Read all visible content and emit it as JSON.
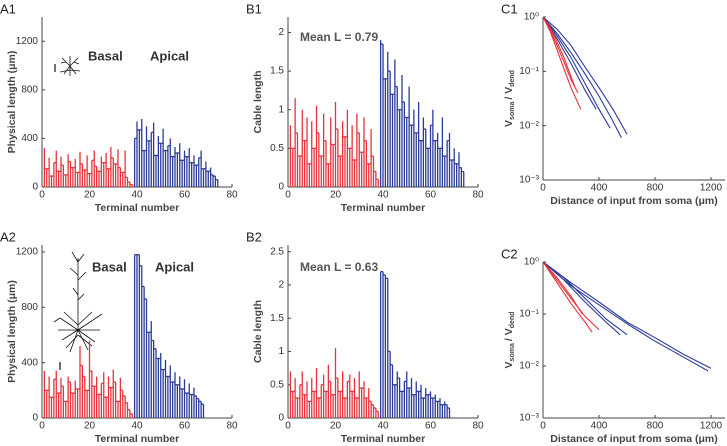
{
  "chart_data": [
    {
      "type": "dendrogram",
      "label": "A1",
      "xlabel": "Terminal number",
      "ylabel": "Physical length (μm)",
      "xlim": [
        0,
        80
      ],
      "xticks": [
        0,
        20,
        40,
        60,
        80
      ],
      "ylim": [
        0,
        1400
      ],
      "yticks": [
        0,
        400,
        800,
        1200
      ],
      "series": [
        {
          "name": "Basal",
          "color": "#e8323c",
          "x": [
            1,
            2,
            3,
            4,
            5,
            6,
            7,
            8,
            9,
            10,
            11,
            12,
            13,
            14,
            15,
            16,
            17,
            18,
            19,
            20,
            21,
            22,
            23,
            24,
            25,
            26,
            27,
            28,
            29,
            30,
            31,
            32,
            33,
            34,
            35,
            36,
            37,
            38
          ],
          "values": [
            320,
            150,
            240,
            90,
            200,
            300,
            130,
            250,
            180,
            100,
            270,
            210,
            160,
            230,
            120,
            290,
            190,
            140,
            260,
            110,
            220,
            300,
            170,
            130,
            250,
            200,
            280,
            150,
            330,
            240,
            190,
            310,
            160,
            120,
            300,
            80,
            40,
            20
          ]
        },
        {
          "name": "Apical",
          "color": "#2b3a98",
          "x": [
            39,
            40,
            41,
            42,
            43,
            44,
            45,
            46,
            47,
            48,
            49,
            50,
            51,
            52,
            53,
            54,
            55,
            56,
            57,
            58,
            59,
            60,
            61,
            62,
            63,
            64,
            65,
            66,
            67,
            68,
            69,
            70,
            71,
            72,
            73,
            74
          ],
          "values": [
            400,
            540,
            470,
            560,
            300,
            500,
            380,
            450,
            530,
            260,
            420,
            360,
            480,
            300,
            340,
            400,
            250,
            330,
            280,
            360,
            220,
            300,
            250,
            320,
            200,
            260,
            180,
            240,
            300,
            150,
            210,
            130,
            160,
            100,
            90,
            60
          ]
        }
      ]
    },
    {
      "type": "dendrogram",
      "label": "B1",
      "xlabel": "Terminal number",
      "ylabel": "Cable length",
      "annotation": "Mean L = 0.79",
      "xlim": [
        0,
        80
      ],
      "xticks": [
        0,
        20,
        40,
        60,
        80
      ],
      "ylim": [
        0,
        2.2
      ],
      "yticks": [
        0,
        0.5,
        1,
        1.5,
        2
      ],
      "series": [
        {
          "color": "#e8323c",
          "x": [
            1,
            2,
            3,
            4,
            5,
            6,
            7,
            8,
            9,
            10,
            11,
            12,
            13,
            14,
            15,
            16,
            17,
            18,
            19,
            20,
            21,
            22,
            23,
            24,
            25,
            26,
            27,
            28,
            29,
            30,
            31,
            32,
            33,
            34,
            35,
            36,
            37,
            38
          ],
          "values": [
            0.8,
            0.5,
            1.15,
            0.7,
            0.4,
            1.0,
            0.6,
            0.9,
            0.3,
            0.85,
            0.5,
            1.05,
            0.7,
            0.4,
            0.95,
            0.6,
            0.3,
            0.9,
            0.55,
            1.1,
            0.75,
            0.4,
            0.85,
            0.65,
            1.0,
            0.5,
            0.8,
            0.35,
            0.95,
            0.7,
            0.45,
            0.9,
            0.6,
            0.3,
            0.75,
            0.4,
            0.2,
            0.1
          ]
        },
        {
          "color": "#2b3a98",
          "x": [
            39,
            40,
            41,
            42,
            43,
            44,
            45,
            46,
            47,
            48,
            49,
            50,
            51,
            52,
            53,
            54,
            55,
            56,
            57,
            58,
            59,
            60,
            61,
            62,
            63,
            64,
            65,
            66,
            67,
            68,
            69,
            70,
            71,
            72,
            73,
            74
          ],
          "values": [
            1.9,
            1.85,
            1.4,
            1.75,
            1.5,
            1.2,
            1.65,
            1.3,
            1.0,
            1.45,
            1.1,
            0.9,
            1.3,
            0.8,
            1.0,
            0.7,
            1.1,
            0.6,
            0.9,
            0.75,
            0.5,
            0.8,
            1.0,
            0.6,
            0.7,
            0.5,
            0.9,
            0.4,
            0.6,
            0.7,
            0.35,
            0.5,
            0.3,
            0.45,
            0.25,
            0.2
          ]
        }
      ]
    },
    {
      "type": "line",
      "label": "C1",
      "xlabel": "Distance of input from soma (μm)",
      "ylabel": [
        "V",
        "soma",
        "/ V",
        "dend"
      ],
      "ylog": true,
      "xlim": [
        0,
        1300
      ],
      "xticks": [
        0,
        400,
        800,
        1200
      ],
      "ylim": [
        0.001,
        1
      ],
      "yticks": [
        {
          "value": 1,
          "label": "10⁰"
        },
        {
          "value": 0.1,
          "label": "10⁻¹"
        },
        {
          "value": 0.01,
          "label": "10⁻²"
        },
        {
          "value": 0.001,
          "label": "10⁻³"
        }
      ],
      "series": [
        {
          "color": "#2b3a98",
          "x": [
            0,
            100,
            200,
            300,
            400,
            500,
            600
          ],
          "values": [
            1,
            0.6,
            0.3,
            0.12,
            0.05,
            0.02,
            0.007
          ]
        },
        {
          "color": "#2b3a98",
          "x": [
            0,
            100,
            200,
            300,
            400,
            500,
            560
          ],
          "values": [
            1,
            0.5,
            0.22,
            0.09,
            0.035,
            0.012,
            0.006
          ]
        },
        {
          "color": "#2b3a98",
          "x": [
            0,
            100,
            200,
            300,
            400,
            480
          ],
          "values": [
            1,
            0.45,
            0.18,
            0.06,
            0.02,
            0.009
          ]
        },
        {
          "color": "#2b3a98",
          "x": [
            0,
            100,
            200,
            300,
            380
          ],
          "values": [
            1,
            0.4,
            0.14,
            0.045,
            0.02
          ]
        },
        {
          "color": "#e8323c",
          "x": [
            0,
            50,
            100,
            150,
            200,
            250
          ],
          "values": [
            1,
            0.6,
            0.3,
            0.15,
            0.07,
            0.04
          ]
        },
        {
          "color": "#e8323c",
          "x": [
            0,
            50,
            100,
            150,
            200,
            270
          ],
          "values": [
            1,
            0.55,
            0.25,
            0.11,
            0.05,
            0.02
          ]
        },
        {
          "color": "#e8323c",
          "x": [
            0,
            50,
            100,
            150,
            200,
            230
          ],
          "values": [
            1,
            0.65,
            0.35,
            0.18,
            0.08,
            0.05
          ]
        }
      ]
    },
    {
      "type": "dendrogram",
      "label": "A2",
      "xlabel": "Terminal number",
      "ylabel": "Physical length (μm)",
      "xlim": [
        0,
        80
      ],
      "xticks": [
        0,
        20,
        40,
        60,
        80
      ],
      "ylim": [
        0,
        1250
      ],
      "yticks": [
        0,
        400,
        800,
        1200
      ],
      "series": [
        {
          "name": "Basal",
          "color": "#e8323c",
          "x": [
            1,
            2,
            3,
            4,
            5,
            6,
            7,
            8,
            9,
            10,
            11,
            12,
            13,
            14,
            15,
            16,
            17,
            18,
            19,
            20,
            21,
            22,
            23,
            24,
            25,
            26,
            27,
            28,
            29,
            30,
            31,
            32,
            33,
            34,
            35,
            36,
            37,
            38
          ],
          "values": [
            340,
            200,
            300,
            150,
            280,
            340,
            180,
            290,
            230,
            120,
            300,
            260,
            180,
            270,
            210,
            520,
            380,
            300,
            200,
            560,
            340,
            230,
            300,
            170,
            250,
            330,
            150,
            300,
            220,
            350,
            260,
            120,
            290,
            200,
            160,
            110,
            60,
            30
          ]
        },
        {
          "name": "Apical",
          "color": "#2b3a98",
          "x": [
            39,
            40,
            41,
            42,
            43,
            44,
            45,
            46,
            47,
            48,
            49,
            50,
            51,
            52,
            53,
            54,
            55,
            56,
            57,
            58,
            59,
            60,
            61,
            62,
            63,
            64,
            65,
            66,
            67,
            68
          ],
          "values": [
            1180,
            1180,
            1180,
            1100,
            950,
            860,
            620,
            700,
            560,
            500,
            430,
            470,
            350,
            420,
            300,
            380,
            260,
            330,
            240,
            300,
            210,
            280,
            180,
            250,
            170,
            220,
            160,
            140,
            120,
            100
          ]
        }
      ]
    },
    {
      "type": "dendrogram",
      "label": "B2",
      "xlabel": "Terminal number",
      "ylabel": "Cable length",
      "annotation": "Mean L = 0.63",
      "xlim": [
        0,
        80
      ],
      "xticks": [
        0,
        20,
        40,
        60,
        80
      ],
      "ylim": [
        0,
        2.6
      ],
      "yticks": [
        0,
        0.5,
        1,
        1.5,
        2,
        2.5
      ],
      "series": [
        {
          "color": "#e8323c",
          "x": [
            1,
            2,
            3,
            4,
            5,
            6,
            7,
            8,
            9,
            10,
            11,
            12,
            13,
            14,
            15,
            16,
            17,
            18,
            19,
            20,
            21,
            22,
            23,
            24,
            25,
            26,
            27,
            28,
            29,
            30,
            31,
            32,
            33,
            34,
            35,
            36,
            37,
            38
          ],
          "values": [
            0.7,
            0.4,
            0.6,
            0.3,
            0.5,
            0.7,
            0.35,
            0.55,
            0.25,
            0.6,
            0.4,
            0.75,
            0.3,
            0.5,
            0.65,
            0.4,
            0.8,
            0.55,
            0.35,
            1.05,
            0.6,
            0.4,
            0.7,
            0.3,
            0.55,
            0.65,
            0.4,
            0.6,
            0.3,
            0.7,
            0.45,
            0.55,
            0.3,
            0.45,
            0.25,
            0.2,
            0.15,
            0.1
          ]
        },
        {
          "color": "#2b3a98",
          "x": [
            39,
            40,
            41,
            42,
            43,
            44,
            45,
            46,
            47,
            48,
            49,
            50,
            51,
            52,
            53,
            54,
            55,
            56,
            57,
            58,
            59,
            60,
            61,
            62,
            63,
            64,
            65,
            66,
            67,
            68
          ],
          "values": [
            2.2,
            2.2,
            2.15,
            2.1,
            1.0,
            0.8,
            0.5,
            0.7,
            0.6,
            0.4,
            0.55,
            0.7,
            0.45,
            0.6,
            0.35,
            0.55,
            0.4,
            0.5,
            0.3,
            0.45,
            0.35,
            0.4,
            0.3,
            0.35,
            0.25,
            0.3,
            0.2,
            0.25,
            0.2,
            0.15
          ]
        }
      ]
    },
    {
      "type": "line",
      "label": "C2",
      "xlabel": "Distance of input from soma (μm)",
      "ylabel": [
        "V",
        "soma",
        "/ V",
        "dend"
      ],
      "ylog": true,
      "xlim": [
        0,
        1300
      ],
      "xticks": [
        0,
        400,
        800,
        1200
      ],
      "ylim": [
        0.001,
        1
      ],
      "yticks": [
        {
          "value": 1,
          "label": "10⁰"
        },
        {
          "value": 0.1,
          "label": "10⁻¹"
        },
        {
          "value": 0.01,
          "label": "10⁻²"
        },
        {
          "value": 0.001,
          "label": "10⁻³"
        }
      ],
      "series": [
        {
          "color": "#2b3a98",
          "x": [
            0,
            200,
            400,
            600,
            800,
            1000,
            1200
          ],
          "values": [
            1,
            0.4,
            0.17,
            0.07,
            0.035,
            0.017,
            0.009
          ]
        },
        {
          "color": "#2b3a98",
          "x": [
            0,
            200,
            400,
            600,
            800,
            1000,
            1180
          ],
          "values": [
            1,
            0.35,
            0.15,
            0.065,
            0.03,
            0.015,
            0.008
          ]
        },
        {
          "color": "#2b3a98",
          "x": [
            0,
            150,
            300,
            450,
            600
          ],
          "values": [
            1,
            0.5,
            0.2,
            0.08,
            0.04
          ]
        },
        {
          "color": "#2b3a98",
          "x": [
            0,
            150,
            300,
            450,
            550
          ],
          "values": [
            1,
            0.45,
            0.17,
            0.07,
            0.04
          ]
        },
        {
          "color": "#e8323c",
          "x": [
            0,
            100,
            200,
            300,
            400
          ],
          "values": [
            1,
            0.45,
            0.2,
            0.09,
            0.05
          ]
        },
        {
          "color": "#e8323c",
          "x": [
            0,
            100,
            200,
            300,
            350
          ],
          "values": [
            1,
            0.4,
            0.16,
            0.07,
            0.045
          ]
        },
        {
          "color": "#e8323c",
          "x": [
            0,
            100,
            200,
            280
          ],
          "values": [
            1,
            0.5,
            0.22,
            0.1
          ]
        }
      ]
    }
  ]
}
